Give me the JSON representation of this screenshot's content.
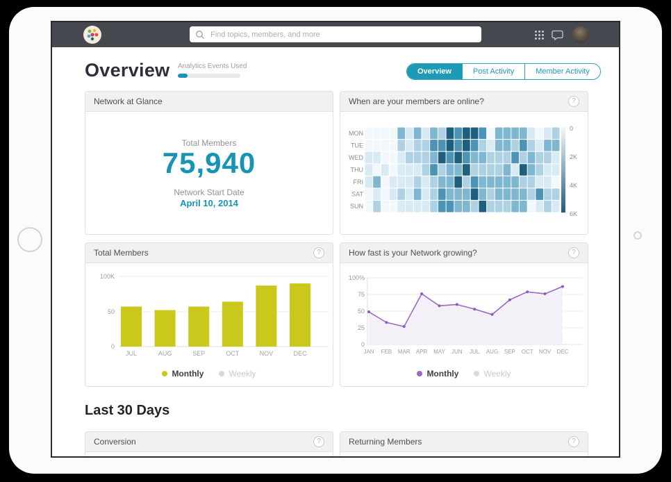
{
  "topbar": {
    "search_placeholder": "Find topics, members, and more"
  },
  "overview": {
    "title": "Overview",
    "events_used_label": "Analytics Events Used",
    "events_used_pct": 15,
    "tabs": [
      {
        "label": "Overview",
        "active": true
      },
      {
        "label": "Post Activity",
        "active": false
      },
      {
        "label": "Member Activity",
        "active": false
      }
    ]
  },
  "section": {
    "last30_title": "Last 30 Days"
  },
  "glyphs": {
    "help": "?"
  },
  "colors": {
    "accent_teal": "#1793b5",
    "topbar_bg": "#45494f",
    "bar_yellow": "#cbc81c",
    "line_purple": "#9a69c5",
    "line_fill": "#f3f0f8",
    "legend_off": "#d9d9d9"
  },
  "cards": {
    "network_glance": {
      "title": "Network at Glance",
      "total_members_label": "Total Members",
      "total_members_value": "75,940",
      "start_date_label": "Network Start Date",
      "start_date_value": "April 10, 2014"
    },
    "members_online": {
      "title": "When are your members are online?"
    },
    "total_members": {
      "title": "Total Members"
    },
    "network_growth": {
      "title": "How fast is your Network growing?"
    },
    "conversion": {
      "title": "Conversion"
    },
    "returning_members": {
      "title": "Returning Members"
    }
  },
  "chart_data": [
    {
      "id": "members_online",
      "type": "heatmap",
      "title": "When are your members are online?",
      "rows": [
        "MON",
        "TUE",
        "WED",
        "THU",
        "FRI",
        "SAT",
        "SUN"
      ],
      "columns": 24,
      "scale_labels": [
        "0",
        "2K",
        "4K",
        "6K"
      ],
      "palette": [
        "#f2f8fb",
        "#d8eaf3",
        "#aed2e3",
        "#7fb7d1",
        "#4b94b6",
        "#1d5f7d"
      ],
      "values": [
        [
          0,
          0,
          0,
          0,
          3,
          1,
          3,
          1,
          3,
          2,
          5,
          4,
          5,
          5,
          4,
          0,
          3,
          3,
          3,
          3,
          1,
          0,
          1,
          2
        ],
        [
          0,
          0,
          0,
          0,
          2,
          1,
          2,
          2,
          4,
          4,
          5,
          4,
          5,
          4,
          2,
          1,
          3,
          3,
          2,
          4,
          2,
          1,
          3,
          3
        ],
        [
          1,
          1,
          0,
          0,
          1,
          2,
          2,
          2,
          3,
          5,
          4,
          5,
          4,
          3,
          3,
          2,
          2,
          2,
          4,
          2,
          3,
          2,
          2,
          1
        ],
        [
          1,
          0,
          1,
          0,
          1,
          1,
          1,
          2,
          4,
          2,
          3,
          3,
          5,
          2,
          2,
          2,
          2,
          3,
          1,
          5,
          3,
          2,
          1,
          1
        ],
        [
          1,
          3,
          0,
          1,
          1,
          1,
          2,
          1,
          2,
          3,
          3,
          5,
          2,
          4,
          3,
          3,
          3,
          3,
          3,
          2,
          2,
          1,
          1,
          0
        ],
        [
          0,
          1,
          0,
          1,
          2,
          1,
          3,
          1,
          2,
          4,
          3,
          3,
          3,
          5,
          3,
          2,
          3,
          3,
          3,
          3,
          2,
          4,
          2,
          2
        ],
        [
          0,
          2,
          0,
          0,
          1,
          1,
          1,
          1,
          2,
          4,
          4,
          3,
          3,
          2,
          5,
          2,
          2,
          2,
          3,
          3,
          0,
          1,
          2,
          1
        ]
      ]
    },
    {
      "id": "total_members",
      "type": "bar",
      "title": "Total Members",
      "categories": [
        "JUL",
        "AUG",
        "SEP",
        "OCT",
        "NOV",
        "DEC"
      ],
      "values": [
        57,
        52,
        57,
        64,
        87,
        90
      ],
      "ylabels": [
        "100K",
        "50",
        "0"
      ],
      "ylim": [
        0,
        100
      ],
      "bar_color": "#cbc81c",
      "legend": [
        {
          "label": "Monthly",
          "color": "#cbc81c",
          "active": true
        },
        {
          "label": "Weekly",
          "color": "#d9d9d9",
          "active": false
        }
      ]
    },
    {
      "id": "network_growth",
      "type": "line",
      "title": "How fast is your Network growing?",
      "categories": [
        "JAN",
        "FEB",
        "MAR",
        "APR",
        "MAY",
        "JUN",
        "JUL",
        "AUG",
        "SEP",
        "OCT",
        "NOV",
        "DEC"
      ],
      "values": [
        49,
        33,
        27,
        76,
        58,
        60,
        53,
        45,
        67,
        79,
        76,
        87
      ],
      "ylabels": [
        "100%",
        "75",
        "50",
        "25",
        "0"
      ],
      "ylim": [
        0,
        100
      ],
      "line_color": "#9a69c5",
      "point_color": "#8d5cbd",
      "fill_color": "#f3f0f8",
      "legend": [
        {
          "label": "Monthly",
          "color": "#9a69c5",
          "active": true
        },
        {
          "label": "Weekly",
          "color": "#d9d9d9",
          "active": false
        }
      ]
    }
  ]
}
